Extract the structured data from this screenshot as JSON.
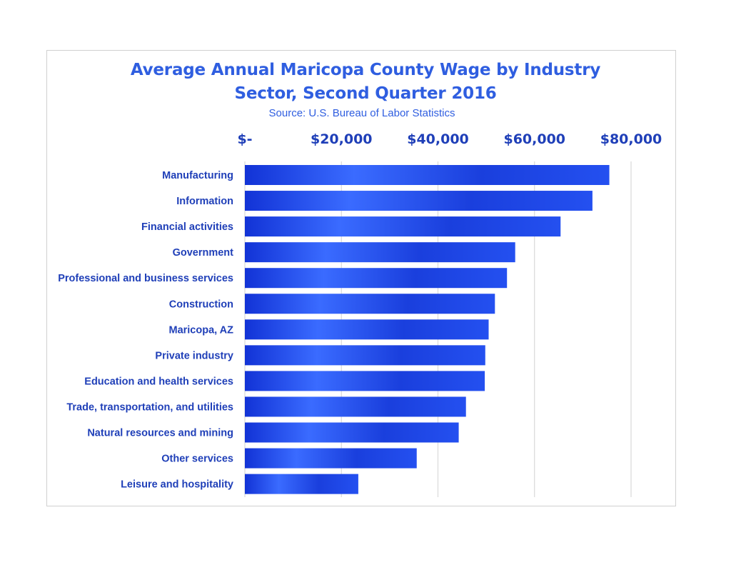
{
  "chart_data": {
    "type": "bar",
    "orientation": "horizontal",
    "title_lines": [
      "Average Annual Maricopa County Wage by Industry",
      "Sector, Second Quarter 2016"
    ],
    "subtitle": "Source: U.S. Bureau of Labor Statistics",
    "categories": [
      "Manufacturing",
      "Information",
      "Financial activities",
      "Government",
      "Professional and business services",
      "Construction",
      "Maricopa, AZ",
      "Private industry",
      "Education and health services",
      "Trade, transportation, and utilities",
      "Natural resources and mining",
      "Other services",
      "Leisure and hospitality"
    ],
    "values": [
      75500,
      72000,
      65400,
      56000,
      54300,
      51800,
      50500,
      49800,
      49700,
      45800,
      44300,
      35600,
      23500
    ],
    "xlim": [
      0,
      80000
    ],
    "xticks": [
      0,
      20000,
      40000,
      60000,
      80000
    ],
    "xtick_labels": [
      "$-",
      "$20,000",
      "$40,000",
      "$60,000",
      "$80,000"
    ],
    "x_axis_position": "top",
    "grid": "vertical",
    "legend": "none",
    "colors": {
      "bar_dark": "#1233d6",
      "bar_light": "#3a6bff",
      "text": "#2f5ee0",
      "grid": "#d9d9d9"
    }
  }
}
